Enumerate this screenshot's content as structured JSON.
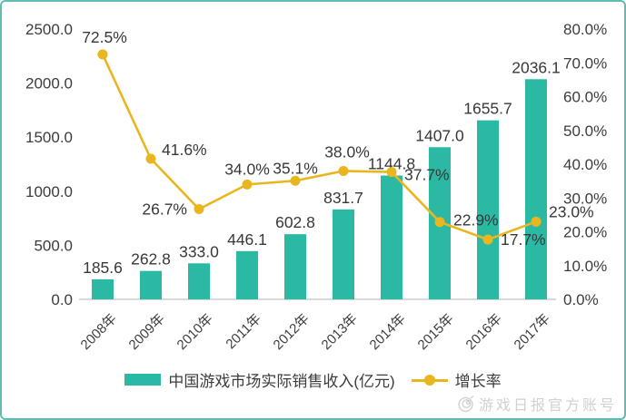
{
  "colors": {
    "bar": "#2BB9A3",
    "line": "#EAB620",
    "text": "#3C3C3C",
    "axis_line": "#D9D9D9",
    "border": "#5FBDB2",
    "watermark": "#C9C9C9",
    "background": "#FFFFFF"
  },
  "chart_data": {
    "type": "bar+line",
    "title": "",
    "categories": [
      "2008年",
      "2009年",
      "2010年",
      "2011年",
      "2012年",
      "2013年",
      "2014年",
      "2015年",
      "2016年",
      "2017年"
    ],
    "series": [
      {
        "name": "中国游戏市场实际销售收入(亿元)",
        "chart_type": "bar",
        "axis": "left",
        "values": [
          185.6,
          262.8,
          333.0,
          446.1,
          602.8,
          831.7,
          1144.8,
          1407.0,
          1655.7,
          2036.1
        ],
        "labels": [
          "185.6",
          "262.8",
          "333.0",
          "446.1",
          "602.8",
          "831.7",
          "1144.8",
          "1407.0",
          "1655.7",
          "2036.1"
        ]
      },
      {
        "name": "增长率",
        "chart_type": "line",
        "axis": "right",
        "values": [
          72.5,
          41.6,
          26.7,
          34.0,
          35.1,
          38.0,
          37.7,
          22.9,
          17.7,
          23.0
        ],
        "labels": [
          "72.5%",
          "41.6%",
          "26.7%",
          "34.0%",
          "35.1%",
          "38.0%",
          "37.7%",
          "22.9%",
          "17.7%",
          "23.0%"
        ]
      }
    ],
    "left_axis": {
      "min": 0,
      "max": 2500,
      "ticks": [
        "2500.0",
        "2000.0",
        "1500.0",
        "1000.0",
        "500.0",
        "0.0"
      ]
    },
    "right_axis": {
      "min": 0,
      "max": 80,
      "ticks": [
        "80.0%",
        "70.0%",
        "60.0%",
        "50.0%",
        "40.0%",
        "30.0%",
        "20.0%",
        "10.0%",
        "0.0%"
      ]
    },
    "legend_position": "bottom",
    "grid": false
  },
  "watermark": {
    "text": "游戏日报官方账号"
  }
}
